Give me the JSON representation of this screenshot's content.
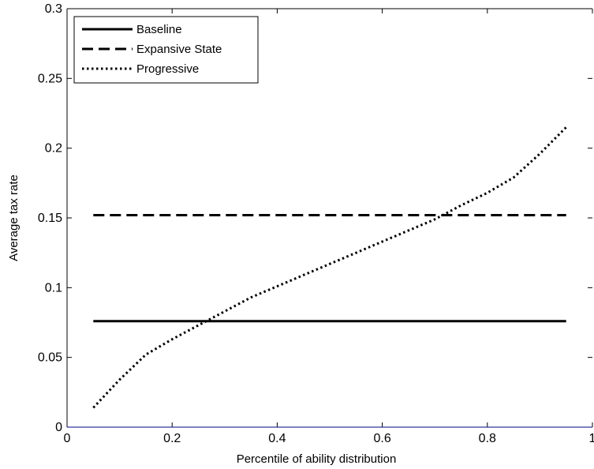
{
  "chart_data": {
    "type": "line",
    "title": "",
    "xlabel": "Percentile of ability distribution",
    "ylabel": "Average tax rate",
    "xlim": [
      0,
      1
    ],
    "ylim": [
      0,
      0.3
    ],
    "xticks": [
      0,
      0.2,
      0.4,
      0.6,
      0.8,
      1
    ],
    "xtick_labels": [
      "0",
      "0.2",
      "0.4",
      "0.6",
      "0.8",
      "1"
    ],
    "yticks": [
      0,
      0.05,
      0.1,
      0.15,
      0.2,
      0.25,
      0.3
    ],
    "ytick_labels": [
      "0",
      "0.05",
      "0.1",
      "0.15",
      "0.2",
      "0.25",
      "0.3"
    ],
    "grid": false,
    "legend_position": "top-left",
    "series": [
      {
        "name": "Baseline",
        "style": "solid",
        "color": "#000000",
        "x": [
          0.05,
          0.95
        ],
        "y": [
          0.076,
          0.076
        ]
      },
      {
        "name": "Expansive State",
        "style": "dashed",
        "color": "#000000",
        "x": [
          0.05,
          0.95
        ],
        "y": [
          0.152,
          0.152
        ]
      },
      {
        "name": "Progressive",
        "style": "dotted",
        "color": "#000000",
        "x": [
          0.05,
          0.1,
          0.15,
          0.2,
          0.25,
          0.3,
          0.35,
          0.4,
          0.45,
          0.5,
          0.55,
          0.6,
          0.65,
          0.7,
          0.75,
          0.8,
          0.85,
          0.9,
          0.95
        ],
        "y": [
          0.014,
          0.034,
          0.052,
          0.063,
          0.073,
          0.083,
          0.093,
          0.101,
          0.109,
          0.117,
          0.125,
          0.133,
          0.141,
          0.149,
          0.159,
          0.168,
          0.179,
          0.196,
          0.215
        ]
      }
    ]
  }
}
